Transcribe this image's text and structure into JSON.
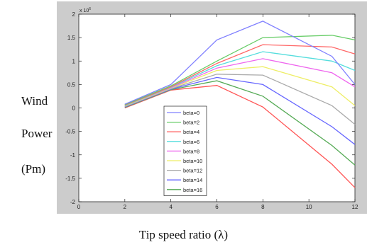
{
  "ylabel_lines": [
    "Wind",
    "Power",
    "(Pm)"
  ],
  "xlabel": "Tip speed ratio (λ)",
  "chart_data": {
    "type": "line",
    "title": "",
    "xlabel": "Tip speed ratio (λ)",
    "ylabel": "Wind Power (Pm)",
    "xlim": [
      0,
      12
    ],
    "ylim": [
      -2,
      2
    ],
    "y_exponent_label": "x 10^6",
    "xticks": [
      0,
      2,
      4,
      6,
      8,
      10,
      12
    ],
    "yticks": [
      -2,
      -1.5,
      -1,
      -0.5,
      0,
      0.5,
      1,
      1.5,
      2
    ],
    "grid": false,
    "legend_position": "bottom-center",
    "x": [
      2,
      4,
      6,
      8,
      11,
      12
    ],
    "series": [
      {
        "name": "beta=0",
        "color": "#8080ff",
        "values": [
          0.08,
          0.5,
          1.45,
          1.85,
          1.1,
          0.5
        ]
      },
      {
        "name": "beta=2",
        "color": "#66cc66",
        "values": [
          0.07,
          0.47,
          1.0,
          1.5,
          1.55,
          1.45
        ]
      },
      {
        "name": "beta=4",
        "color": "#ff6666",
        "values": [
          0.06,
          0.45,
          0.95,
          1.35,
          1.3,
          1.15
        ]
      },
      {
        "name": "beta=6",
        "color": "#55dddd",
        "values": [
          0.05,
          0.44,
          0.9,
          1.2,
          1.0,
          0.8
        ]
      },
      {
        "name": "beta=8",
        "color": "#ee66ee",
        "values": [
          0.05,
          0.43,
          0.85,
          1.05,
          0.75,
          0.45
        ]
      },
      {
        "name": "beta=10",
        "color": "#eeee66",
        "values": [
          0.04,
          0.42,
          0.8,
          0.88,
          0.45,
          0.05
        ]
      },
      {
        "name": "beta=12",
        "color": "#aaaaaa",
        "values": [
          0.03,
          0.41,
          0.72,
          0.7,
          0.05,
          -0.35
        ]
      },
      {
        "name": "beta=14",
        "color": "#6666ff",
        "values": [
          0.02,
          0.4,
          0.65,
          0.5,
          -0.4,
          -0.78
        ]
      },
      {
        "name": "beta=16",
        "color": "#55aa55",
        "values": [
          0.01,
          0.39,
          0.58,
          0.25,
          -0.8,
          -1.22
        ]
      },
      {
        "name": "",
        "color": "#ff5555",
        "values": [
          0.0,
          0.38,
          0.48,
          0.02,
          -1.2,
          -1.7
        ]
      }
    ]
  }
}
